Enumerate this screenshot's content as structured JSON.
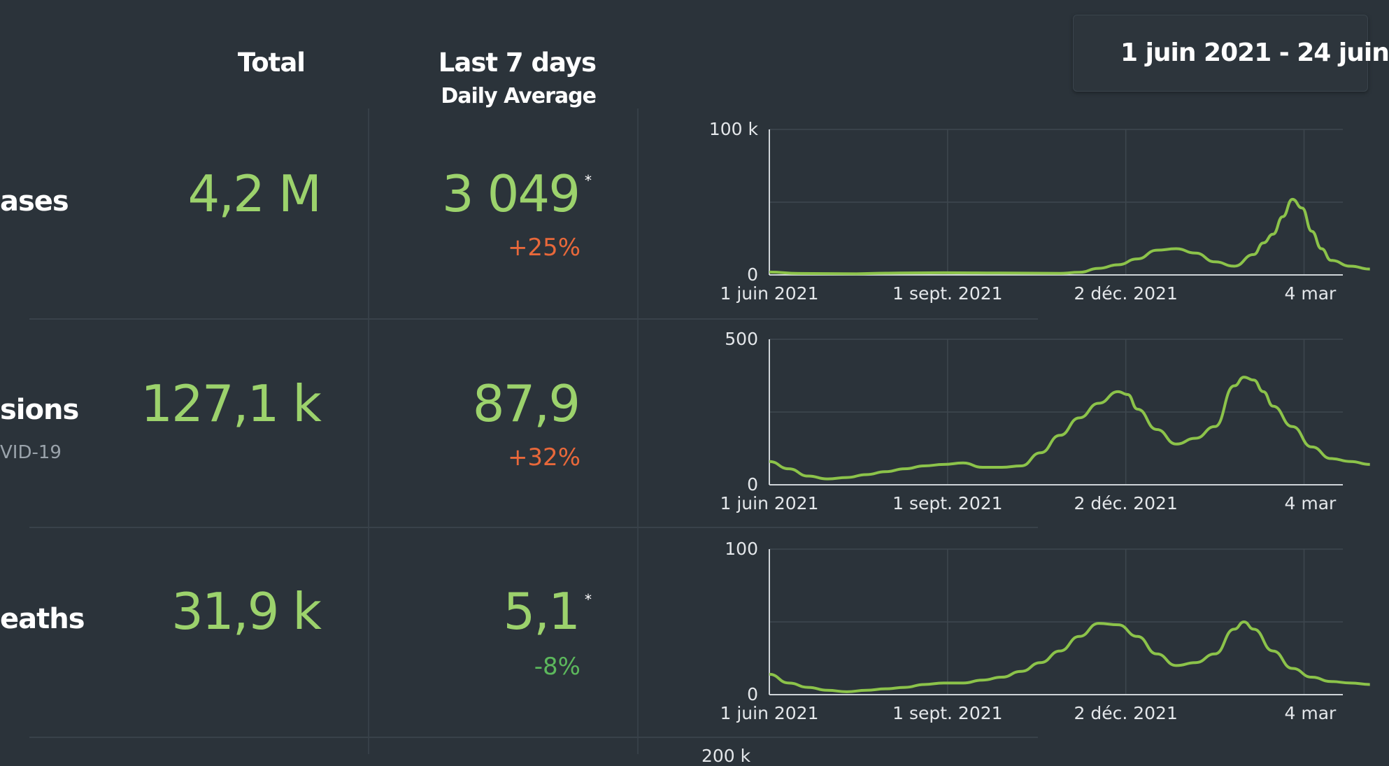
{
  "header": {
    "total_label": "Total",
    "last7_label": "Last 7 days",
    "daily_avg_label": "Daily Average"
  },
  "date_range": {
    "label": "1 juin 2021 - 24 juin"
  },
  "colors": {
    "value_green": "#9cd26c",
    "increase": "#e8683a",
    "decrease": "#5cb85c",
    "line": "#8cc34a"
  },
  "rows": [
    {
      "label": "ases",
      "sublabel": "",
      "total": "4,2 M",
      "avg": "3 049",
      "avg_marker": "*",
      "change": "+25%",
      "change_dir": "up"
    },
    {
      "label": "sions",
      "sublabel": "VID-19",
      "total": "127,1 k",
      "avg": "87,9",
      "avg_marker": "",
      "change": "+32%",
      "change_dir": "up"
    },
    {
      "label": "eaths",
      "sublabel": "",
      "total": "31,9 k",
      "avg": "5,1",
      "avg_marker": "*",
      "change": "-8%",
      "change_dir": "down"
    }
  ],
  "next_chart_partial_label": "200 k",
  "chart_data": [
    {
      "type": "line",
      "ylim": [
        0,
        100000
      ],
      "y_tick_labels": [
        "0",
        "100 k"
      ],
      "x_tick_labels": [
        "1 juin 2021",
        "1 sept. 2021",
        "2 déc. 2021",
        "4 mar"
      ],
      "x_days": [
        0,
        15,
        30,
        45,
        60,
        75,
        90,
        105,
        120,
        135,
        150,
        160,
        170,
        180,
        190,
        200,
        210,
        220,
        230,
        240,
        250,
        255,
        260,
        265,
        270,
        275,
        280,
        285,
        290,
        300,
        310
      ],
      "y": [
        2000,
        1000,
        900,
        800,
        1200,
        1400,
        1500,
        1400,
        1300,
        1200,
        1100,
        1800,
        4500,
        7000,
        11000,
        17000,
        18000,
        15000,
        9000,
        6000,
        14000,
        22000,
        28000,
        40000,
        52000,
        46000,
        30000,
        18000,
        10000,
        6000,
        4000
      ]
    },
    {
      "type": "line",
      "ylim": [
        0,
        500
      ],
      "y_tick_labels": [
        "0",
        "500"
      ],
      "x_tick_labels": [
        "1 juin 2021",
        "1 sept. 2021",
        "2 déc. 2021",
        "4 mar"
      ],
      "x_days": [
        0,
        10,
        20,
        30,
        40,
        50,
        60,
        70,
        80,
        90,
        100,
        110,
        120,
        130,
        140,
        150,
        160,
        170,
        180,
        185,
        190,
        200,
        210,
        220,
        230,
        240,
        245,
        250,
        255,
        260,
        270,
        280,
        290,
        300,
        310
      ],
      "y": [
        80,
        55,
        30,
        20,
        25,
        35,
        45,
        55,
        65,
        70,
        75,
        60,
        60,
        65,
        110,
        170,
        230,
        280,
        320,
        310,
        260,
        190,
        140,
        160,
        200,
        340,
        370,
        360,
        320,
        270,
        200,
        130,
        90,
        80,
        70
      ]
    },
    {
      "type": "line",
      "ylim": [
        0,
        100
      ],
      "y_tick_labels": [
        "0",
        "100"
      ],
      "x_tick_labels": [
        "1 juin 2021",
        "1 sept. 2021",
        "2 déc. 2021",
        "4 mar"
      ],
      "x_days": [
        0,
        10,
        20,
        30,
        40,
        50,
        60,
        70,
        80,
        90,
        100,
        110,
        120,
        130,
        140,
        150,
        160,
        170,
        180,
        190,
        200,
        210,
        220,
        230,
        240,
        245,
        250,
        260,
        270,
        280,
        290,
        300,
        310
      ],
      "y": [
        14,
        8,
        5,
        3,
        2,
        3,
        4,
        5,
        7,
        8,
        8,
        10,
        12,
        16,
        22,
        30,
        40,
        49,
        48,
        40,
        28,
        20,
        22,
        28,
        45,
        50,
        45,
        30,
        18,
        12,
        9,
        8,
        7
      ]
    }
  ]
}
